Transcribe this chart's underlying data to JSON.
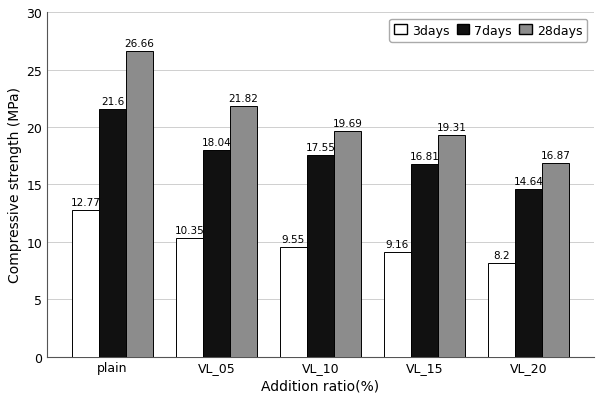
{
  "categories": [
    "plain",
    "VL_05",
    "VL_10",
    "VL_15",
    "VL_20"
  ],
  "series": {
    "3days": [
      12.77,
      10.35,
      9.55,
      9.16,
      8.2
    ],
    "7days": [
      21.6,
      18.04,
      17.55,
      16.81,
      14.64
    ],
    "28days": [
      26.66,
      21.82,
      19.69,
      19.31,
      16.87
    ]
  },
  "bar_colors": {
    "3days": "#ffffff",
    "7days": "#111111",
    "28days": "#8c8c8c"
  },
  "bar_edgecolor": "#000000",
  "legend_labels": [
    "3days",
    "7days",
    "28days"
  ],
  "xlabel": "Addition ratio(%)",
  "ylabel": "Compressive strength (MPa)",
  "ylim": [
    0,
    30
  ],
  "yticks": [
    0,
    5,
    10,
    15,
    20,
    25,
    30
  ],
  "axis_fontsize": 10,
  "tick_fontsize": 9,
  "label_fontsize": 7.5,
  "bar_width": 0.26,
  "background_color": "#ffffff"
}
